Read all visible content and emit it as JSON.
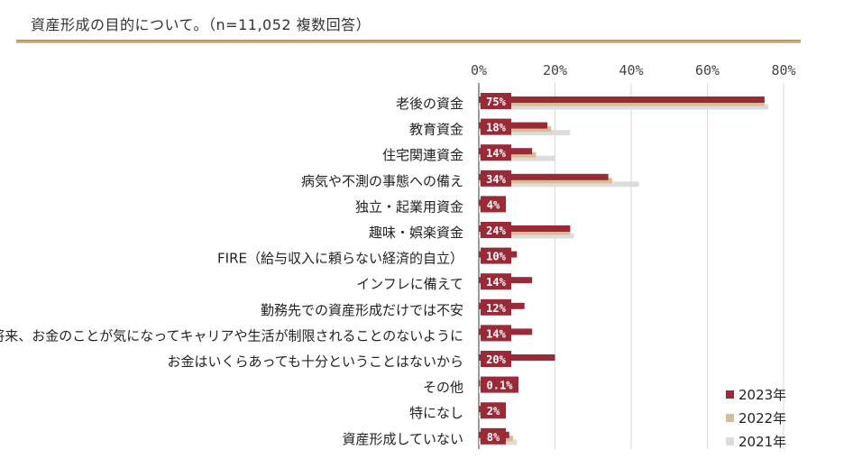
{
  "title": "資産形成の目的について。（n=11,052 複数回答）",
  "colors": {
    "y2023": "#9b2a38",
    "y2022": "#d8bd93",
    "y2021": "#dcdcdc",
    "grid": "#d9d9d9",
    "axis": "#7a7a7a"
  },
  "chart_data": {
    "type": "bar",
    "orientation": "horizontal",
    "x_ticks": [
      "0%",
      "20%",
      "40%",
      "60%",
      "80%"
    ],
    "xlim": [
      0,
      80
    ],
    "grid": true,
    "legend_position": "bottom-right",
    "categories": [
      "老後の資金",
      "教育資金",
      "住宅関連資金",
      "病気や不測の事態への備え",
      "独立・起業用資金",
      "趣味・娯楽資金",
      "FIRE（給与収入に頼らない経済的自立）",
      "インフレに備えて",
      "勤務先での資産形成だけでは不安",
      "将来、お金のことが気になってキャリアや生活が制限されることのないように",
      "お金はいくらあっても十分ということはないから",
      "その他",
      "特になし",
      "資産形成していない"
    ],
    "data_labels": [
      "75%",
      "18%",
      "14%",
      "34%",
      "4%",
      "24%",
      "10%",
      "14%",
      "12%",
      "14%",
      "20%",
      "0.1%",
      "2%",
      "8%"
    ],
    "series": [
      {
        "name": "2023年",
        "color": "#9b2a38",
        "values": [
          75,
          18,
          14,
          34,
          4,
          24,
          10,
          14,
          12,
          14,
          20,
          0.1,
          2,
          8
        ]
      },
      {
        "name": "2022年",
        "color": "#d8bd93",
        "values": [
          75,
          19,
          15,
          35,
          4,
          24,
          null,
          null,
          null,
          null,
          null,
          0.1,
          2,
          9
        ]
      },
      {
        "name": "2021年",
        "color": "#dcdcdc",
        "values": [
          76,
          24,
          20,
          42,
          4,
          25,
          null,
          null,
          null,
          null,
          null,
          0.1,
          2,
          10
        ]
      }
    ]
  }
}
